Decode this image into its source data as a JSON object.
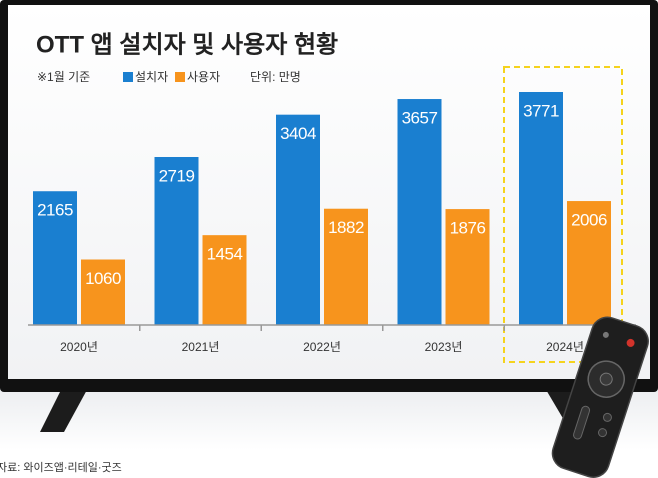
{
  "chart_data": {
    "type": "bar",
    "title": "OTT 앱 설치자 및 사용자 현황",
    "note": "※1월 기준",
    "unit": "단위: 만명",
    "source": "자료: 와이즈앱·리테일·굿즈",
    "categories": [
      "2020년",
      "2021년",
      "2022년",
      "2023년",
      "2024년"
    ],
    "series": [
      {
        "name": "설치자",
        "color": "#1a7fd0",
        "values": [
          2165,
          2719,
          3404,
          3657,
          3771
        ]
      },
      {
        "name": "사용자",
        "color": "#f7941d",
        "values": [
          1060,
          1454,
          1882,
          1876,
          2006
        ]
      }
    ]
  }
}
